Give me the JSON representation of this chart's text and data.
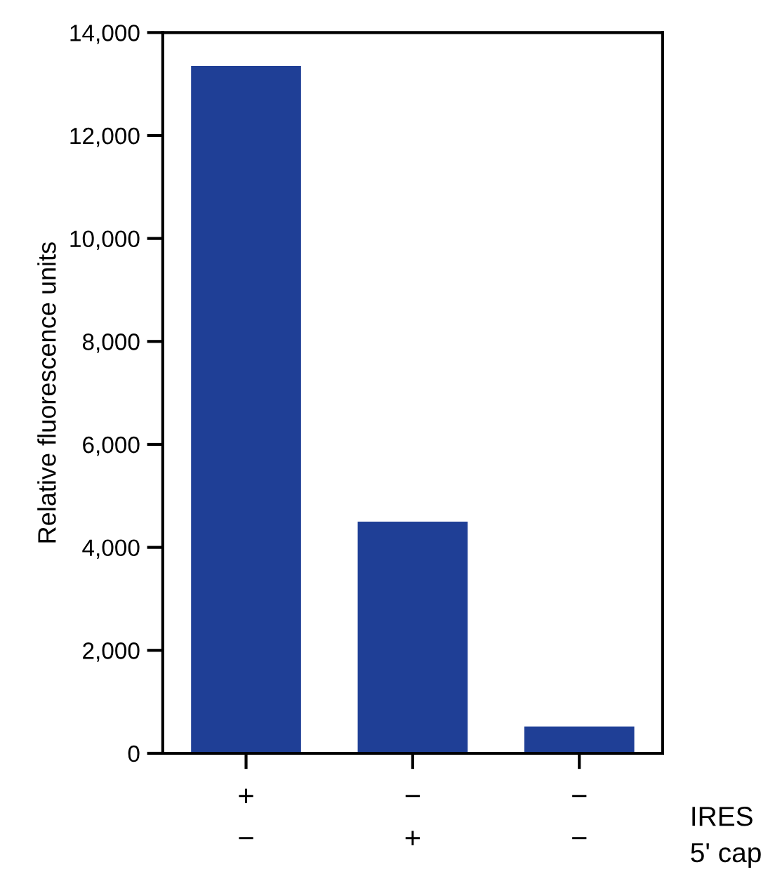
{
  "chart_data": {
    "type": "bar",
    "ylabel": "Relative fluorescence units",
    "categories": [
      "+\n−",
      "−\n+",
      "−\n−"
    ],
    "values": [
      13350,
      4500,
      520
    ],
    "color": "#1f3f96",
    "ylim": [
      0,
      14000
    ],
    "yticks": [
      {
        "value": 0,
        "label": "0"
      },
      {
        "value": 2000,
        "label": "2,000"
      },
      {
        "value": 4000,
        "label": "4,000"
      },
      {
        "value": 6000,
        "label": "6,000"
      },
      {
        "value": 8000,
        "label": "8,000"
      },
      {
        "value": 10000,
        "label": "10,000"
      },
      {
        "value": 12000,
        "label": "12,000"
      },
      {
        "value": 14000,
        "label": "14,000"
      }
    ],
    "annotations": [
      "IRES\n5' cap"
    ],
    "grid": false,
    "legend": false
  }
}
